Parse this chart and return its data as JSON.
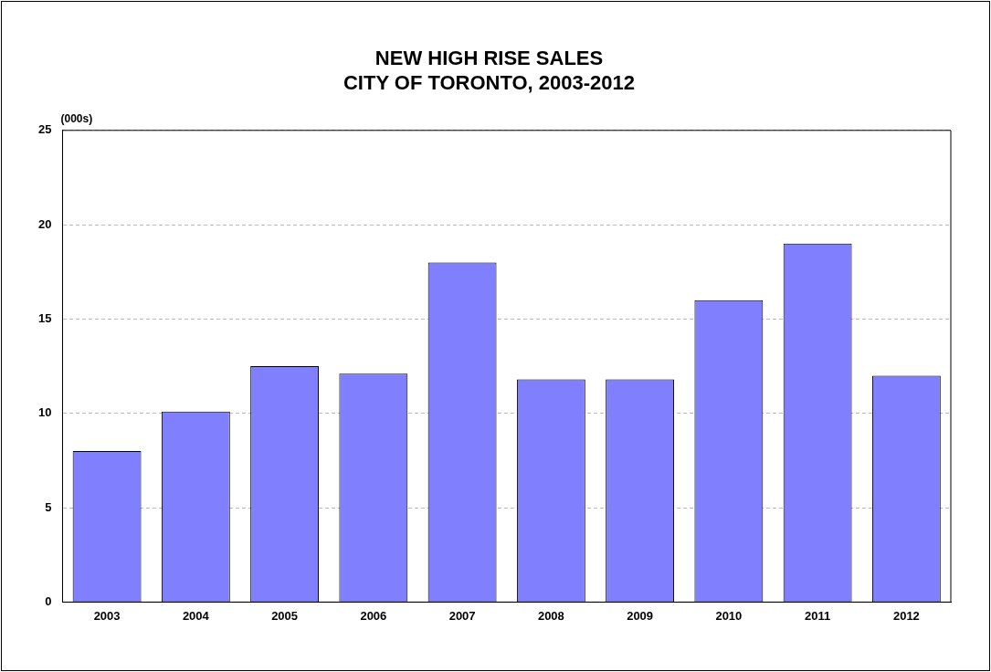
{
  "chart_data": {
    "type": "bar",
    "title": [
      "NEW HIGH RISE SALES",
      "CITY OF TORONTO, 2003-2012"
    ],
    "ylabel": "(000s)",
    "categories": [
      "2003",
      "2004",
      "2005",
      "2006",
      "2007",
      "2008",
      "2009",
      "2010",
      "2011",
      "2012"
    ],
    "values": [
      8.0,
      10.1,
      12.5,
      12.1,
      18.0,
      11.8,
      11.8,
      16.0,
      19.0,
      12.0
    ],
    "color": "#8080ff",
    "ylim": [
      0,
      25
    ],
    "yticks": [
      0,
      5,
      10,
      15,
      20,
      25
    ],
    "grid": "y",
    "legend": false
  }
}
